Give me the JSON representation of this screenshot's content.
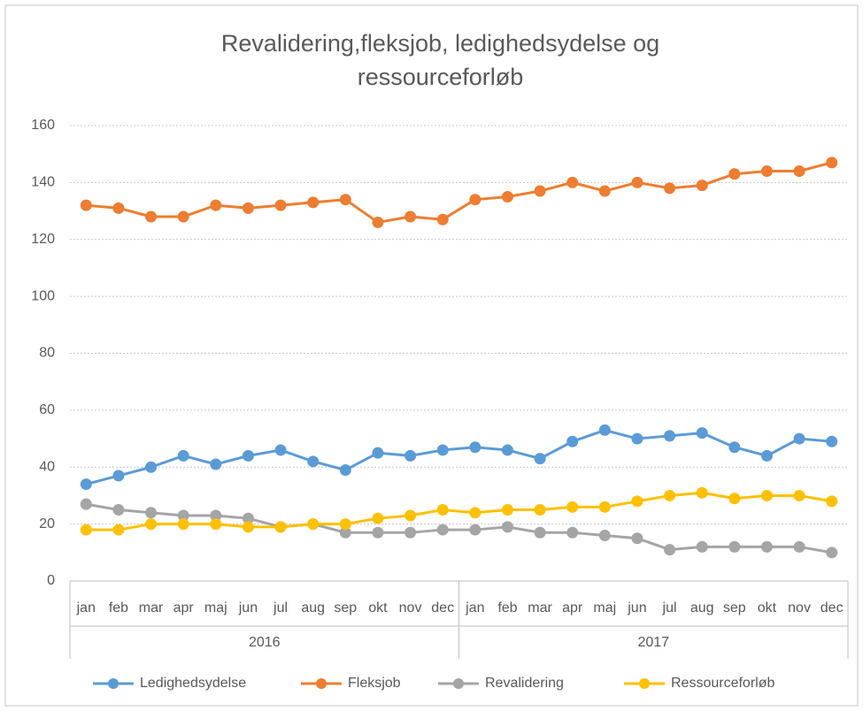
{
  "chart_data": {
    "type": "line",
    "title": "Revalidering,fleksjob, ledighedsydelse og ressourceforløb",
    "categories": [
      "jan",
      "feb",
      "mar",
      "apr",
      "maj",
      "jun",
      "jul",
      "aug",
      "sep",
      "okt",
      "nov",
      "dec",
      "jan",
      "feb",
      "mar",
      "apr",
      "maj",
      "jun",
      "jul",
      "aug",
      "sep",
      "okt",
      "nov",
      "dec"
    ],
    "category_groups": [
      "2016",
      "2017"
    ],
    "series": [
      {
        "name": "Ledighedsydelse",
        "color": "#5b9bd5",
        "values": [
          34,
          37,
          40,
          44,
          41,
          44,
          46,
          42,
          39,
          45,
          44,
          46,
          47,
          46,
          43,
          49,
          53,
          50,
          51,
          52,
          47,
          44,
          50,
          49
        ]
      },
      {
        "name": "Fleksjob",
        "color": "#ed7d31",
        "values": [
          132,
          131,
          128,
          128,
          132,
          131,
          132,
          133,
          134,
          126,
          128,
          127,
          134,
          135,
          137,
          140,
          137,
          140,
          138,
          139,
          143,
          144,
          144,
          147
        ]
      },
      {
        "name": "Revalidering",
        "color": "#a5a5a5",
        "values": [
          27,
          25,
          24,
          23,
          23,
          22,
          19,
          20,
          17,
          17,
          17,
          18,
          18,
          19,
          17,
          17,
          16,
          15,
          11,
          12,
          12,
          12,
          12,
          10
        ]
      },
      {
        "name": "Ressourceforløb",
        "color": "#ffc000",
        "values": [
          18,
          18,
          20,
          20,
          20,
          19,
          19,
          20,
          20,
          22,
          23,
          25,
          24,
          25,
          25,
          26,
          26,
          28,
          30,
          31,
          29,
          30,
          30,
          28
        ]
      }
    ],
    "ylim": [
      0,
      160
    ],
    "yticks": [
      0,
      20,
      40,
      60,
      80,
      100,
      120,
      140,
      160
    ],
    "grid": true,
    "legend": "bottom"
  }
}
